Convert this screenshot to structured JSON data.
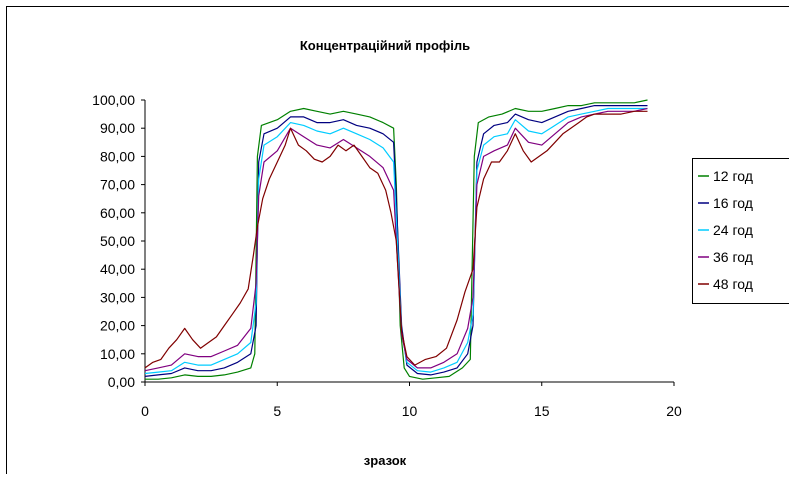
{
  "chart_data": {
    "type": "line",
    "title": "Концентраційний профіль",
    "xlabel": "зразок",
    "ylabel": "",
    "xlim": [
      0,
      20
    ],
    "ylim": [
      0,
      100
    ],
    "x_ticks": [
      0,
      5,
      10,
      15,
      20
    ],
    "x_tick_labels": [
      "0",
      "5",
      "10",
      "15",
      "20"
    ],
    "y_ticks": [
      0,
      10,
      20,
      30,
      40,
      50,
      60,
      70,
      80,
      90,
      100
    ],
    "y_tick_labels": [
      "0,00",
      "10,00",
      "20,00",
      "30,00",
      "40,00",
      "50,00",
      "60,00",
      "70,00",
      "80,00",
      "90,00",
      "100,00"
    ],
    "grid": false,
    "legend_position": "right",
    "series": [
      {
        "name": "12 год",
        "color": "#008000",
        "points": [
          [
            0,
            1
          ],
          [
            0.5,
            1
          ],
          [
            1,
            1.5
          ],
          [
            1.5,
            2.5
          ],
          [
            2,
            2
          ],
          [
            2.5,
            2
          ],
          [
            3,
            2.5
          ],
          [
            3.5,
            3.5
          ],
          [
            4,
            5
          ],
          [
            4.15,
            10
          ],
          [
            4.25,
            80
          ],
          [
            4.4,
            91
          ],
          [
            5,
            93
          ],
          [
            5.5,
            96
          ],
          [
            6,
            97
          ],
          [
            6.5,
            96
          ],
          [
            7,
            95
          ],
          [
            7.5,
            96
          ],
          [
            8,
            95
          ],
          [
            8.5,
            94
          ],
          [
            9,
            92
          ],
          [
            9.4,
            90
          ],
          [
            9.5,
            70
          ],
          [
            9.65,
            20
          ],
          [
            9.8,
            5
          ],
          [
            10,
            2
          ],
          [
            10.5,
            1
          ],
          [
            11,
            1.5
          ],
          [
            11.5,
            2
          ],
          [
            12,
            5
          ],
          [
            12.3,
            8
          ],
          [
            12.45,
            80
          ],
          [
            12.6,
            92
          ],
          [
            13,
            94
          ],
          [
            13.5,
            95
          ],
          [
            14,
            97
          ],
          [
            14.5,
            96
          ],
          [
            15,
            96
          ],
          [
            15.5,
            97
          ],
          [
            16,
            98
          ],
          [
            16.5,
            98
          ],
          [
            17,
            99
          ],
          [
            17.5,
            99
          ],
          [
            18,
            99
          ],
          [
            18.5,
            99
          ],
          [
            19,
            100
          ]
        ]
      },
      {
        "name": "16 год",
        "color": "#000080",
        "points": [
          [
            0,
            2
          ],
          [
            0.5,
            2.5
          ],
          [
            1,
            3
          ],
          [
            1.5,
            5
          ],
          [
            2,
            4
          ],
          [
            2.5,
            4
          ],
          [
            3,
            5
          ],
          [
            3.5,
            7
          ],
          [
            4,
            10
          ],
          [
            4.2,
            20
          ],
          [
            4.3,
            78
          ],
          [
            4.5,
            88
          ],
          [
            5,
            90
          ],
          [
            5.5,
            94
          ],
          [
            6,
            94
          ],
          [
            6.5,
            92
          ],
          [
            7,
            92
          ],
          [
            7.5,
            93
          ],
          [
            8,
            91
          ],
          [
            8.5,
            90
          ],
          [
            9,
            88
          ],
          [
            9.4,
            85
          ],
          [
            9.5,
            65
          ],
          [
            9.7,
            20
          ],
          [
            9.9,
            6
          ],
          [
            10.3,
            3
          ],
          [
            10.8,
            2.5
          ],
          [
            11.3,
            3.5
          ],
          [
            11.8,
            5
          ],
          [
            12.2,
            10
          ],
          [
            12.4,
            20
          ],
          [
            12.55,
            78
          ],
          [
            12.8,
            88
          ],
          [
            13.2,
            91
          ],
          [
            13.7,
            92
          ],
          [
            14,
            95
          ],
          [
            14.5,
            93
          ],
          [
            15,
            92
          ],
          [
            15.5,
            94
          ],
          [
            16,
            96
          ],
          [
            16.5,
            97
          ],
          [
            17,
            98
          ],
          [
            17.5,
            98
          ],
          [
            18,
            98
          ],
          [
            18.5,
            98
          ],
          [
            19,
            98
          ]
        ]
      },
      {
        "name": "24 год",
        "color": "#00CCFF",
        "points": [
          [
            0,
            3
          ],
          [
            0.5,
            3.5
          ],
          [
            1,
            4
          ],
          [
            1.5,
            7
          ],
          [
            2,
            6
          ],
          [
            2.5,
            6
          ],
          [
            3,
            8
          ],
          [
            3.5,
            10
          ],
          [
            4,
            14
          ],
          [
            4.2,
            28
          ],
          [
            4.3,
            72
          ],
          [
            4.5,
            84
          ],
          [
            5,
            87
          ],
          [
            5.5,
            92
          ],
          [
            6,
            91
          ],
          [
            6.5,
            89
          ],
          [
            7,
            88
          ],
          [
            7.5,
            90
          ],
          [
            8,
            88
          ],
          [
            8.5,
            86
          ],
          [
            9,
            83
          ],
          [
            9.4,
            78
          ],
          [
            9.5,
            58
          ],
          [
            9.7,
            18
          ],
          [
            9.9,
            7
          ],
          [
            10.3,
            4
          ],
          [
            10.8,
            3.5
          ],
          [
            11.3,
            5
          ],
          [
            11.8,
            7
          ],
          [
            12.2,
            14
          ],
          [
            12.4,
            24
          ],
          [
            12.55,
            75
          ],
          [
            12.8,
            84
          ],
          [
            13.2,
            87
          ],
          [
            13.7,
            88
          ],
          [
            14,
            93
          ],
          [
            14.5,
            89
          ],
          [
            15,
            88
          ],
          [
            15.5,
            91
          ],
          [
            16,
            94
          ],
          [
            16.5,
            95
          ],
          [
            17,
            96
          ],
          [
            17.5,
            97
          ],
          [
            18,
            97
          ],
          [
            18.5,
            97
          ],
          [
            19,
            97
          ]
        ]
      },
      {
        "name": "36 год",
        "color": "#800080",
        "points": [
          [
            0,
            4
          ],
          [
            0.5,
            5
          ],
          [
            1,
            6
          ],
          [
            1.5,
            10
          ],
          [
            2,
            9
          ],
          [
            2.5,
            9
          ],
          [
            3,
            11
          ],
          [
            3.5,
            13
          ],
          [
            4,
            19
          ],
          [
            4.2,
            35
          ],
          [
            4.3,
            66
          ],
          [
            4.5,
            78
          ],
          [
            5,
            82
          ],
          [
            5.5,
            90
          ],
          [
            6,
            87
          ],
          [
            6.5,
            84
          ],
          [
            7,
            83
          ],
          [
            7.5,
            86
          ],
          [
            8,
            83
          ],
          [
            8.5,
            80
          ],
          [
            9,
            76
          ],
          [
            9.4,
            68
          ],
          [
            9.5,
            50
          ],
          [
            9.7,
            17
          ],
          [
            9.9,
            8
          ],
          [
            10.3,
            5
          ],
          [
            10.8,
            5
          ],
          [
            11.3,
            7
          ],
          [
            11.8,
            10
          ],
          [
            12.2,
            19
          ],
          [
            12.4,
            30
          ],
          [
            12.55,
            70
          ],
          [
            12.8,
            80
          ],
          [
            13.2,
            82
          ],
          [
            13.7,
            84
          ],
          [
            14,
            90
          ],
          [
            14.5,
            85
          ],
          [
            15,
            84
          ],
          [
            15.5,
            88
          ],
          [
            16,
            92
          ],
          [
            16.5,
            94
          ],
          [
            17,
            95
          ],
          [
            17.5,
            96
          ],
          [
            18,
            96
          ],
          [
            18.5,
            96
          ],
          [
            19,
            97
          ]
        ]
      },
      {
        "name": "48 год",
        "color": "#800000",
        "points": [
          [
            0,
            5
          ],
          [
            0.3,
            7
          ],
          [
            0.6,
            8
          ],
          [
            0.9,
            12
          ],
          [
            1.2,
            15
          ],
          [
            1.5,
            19
          ],
          [
            1.8,
            15
          ],
          [
            2.1,
            12
          ],
          [
            2.4,
            14
          ],
          [
            2.7,
            16
          ],
          [
            3,
            20
          ],
          [
            3.3,
            24
          ],
          [
            3.6,
            28
          ],
          [
            3.9,
            33
          ],
          [
            4.1,
            45
          ],
          [
            4.25,
            55
          ],
          [
            4.45,
            65
          ],
          [
            4.7,
            72
          ],
          [
            5,
            78
          ],
          [
            5.3,
            84
          ],
          [
            5.5,
            90
          ],
          [
            5.8,
            84
          ],
          [
            6.1,
            82
          ],
          [
            6.4,
            79
          ],
          [
            6.7,
            78
          ],
          [
            7,
            80
          ],
          [
            7.3,
            84
          ],
          [
            7.6,
            82
          ],
          [
            7.9,
            84
          ],
          [
            8.2,
            80
          ],
          [
            8.5,
            76
          ],
          [
            8.8,
            74
          ],
          [
            9.1,
            68
          ],
          [
            9.3,
            60
          ],
          [
            9.5,
            50
          ],
          [
            9.7,
            18
          ],
          [
            9.9,
            9
          ],
          [
            10.2,
            6
          ],
          [
            10.6,
            8
          ],
          [
            11,
            9
          ],
          [
            11.4,
            12
          ],
          [
            11.8,
            22
          ],
          [
            12.1,
            32
          ],
          [
            12.4,
            40
          ],
          [
            12.55,
            62
          ],
          [
            12.8,
            72
          ],
          [
            13.1,
            78
          ],
          [
            13.4,
            78
          ],
          [
            13.7,
            82
          ],
          [
            14,
            88
          ],
          [
            14.3,
            82
          ],
          [
            14.6,
            78
          ],
          [
            14.9,
            80
          ],
          [
            15.2,
            82
          ],
          [
            15.5,
            85
          ],
          [
            15.8,
            88
          ],
          [
            16.1,
            90
          ],
          [
            16.4,
            92
          ],
          [
            16.7,
            94
          ],
          [
            17,
            95
          ],
          [
            17.5,
            95
          ],
          [
            18,
            95
          ],
          [
            18.5,
            96
          ],
          [
            19,
            96
          ]
        ]
      }
    ]
  }
}
